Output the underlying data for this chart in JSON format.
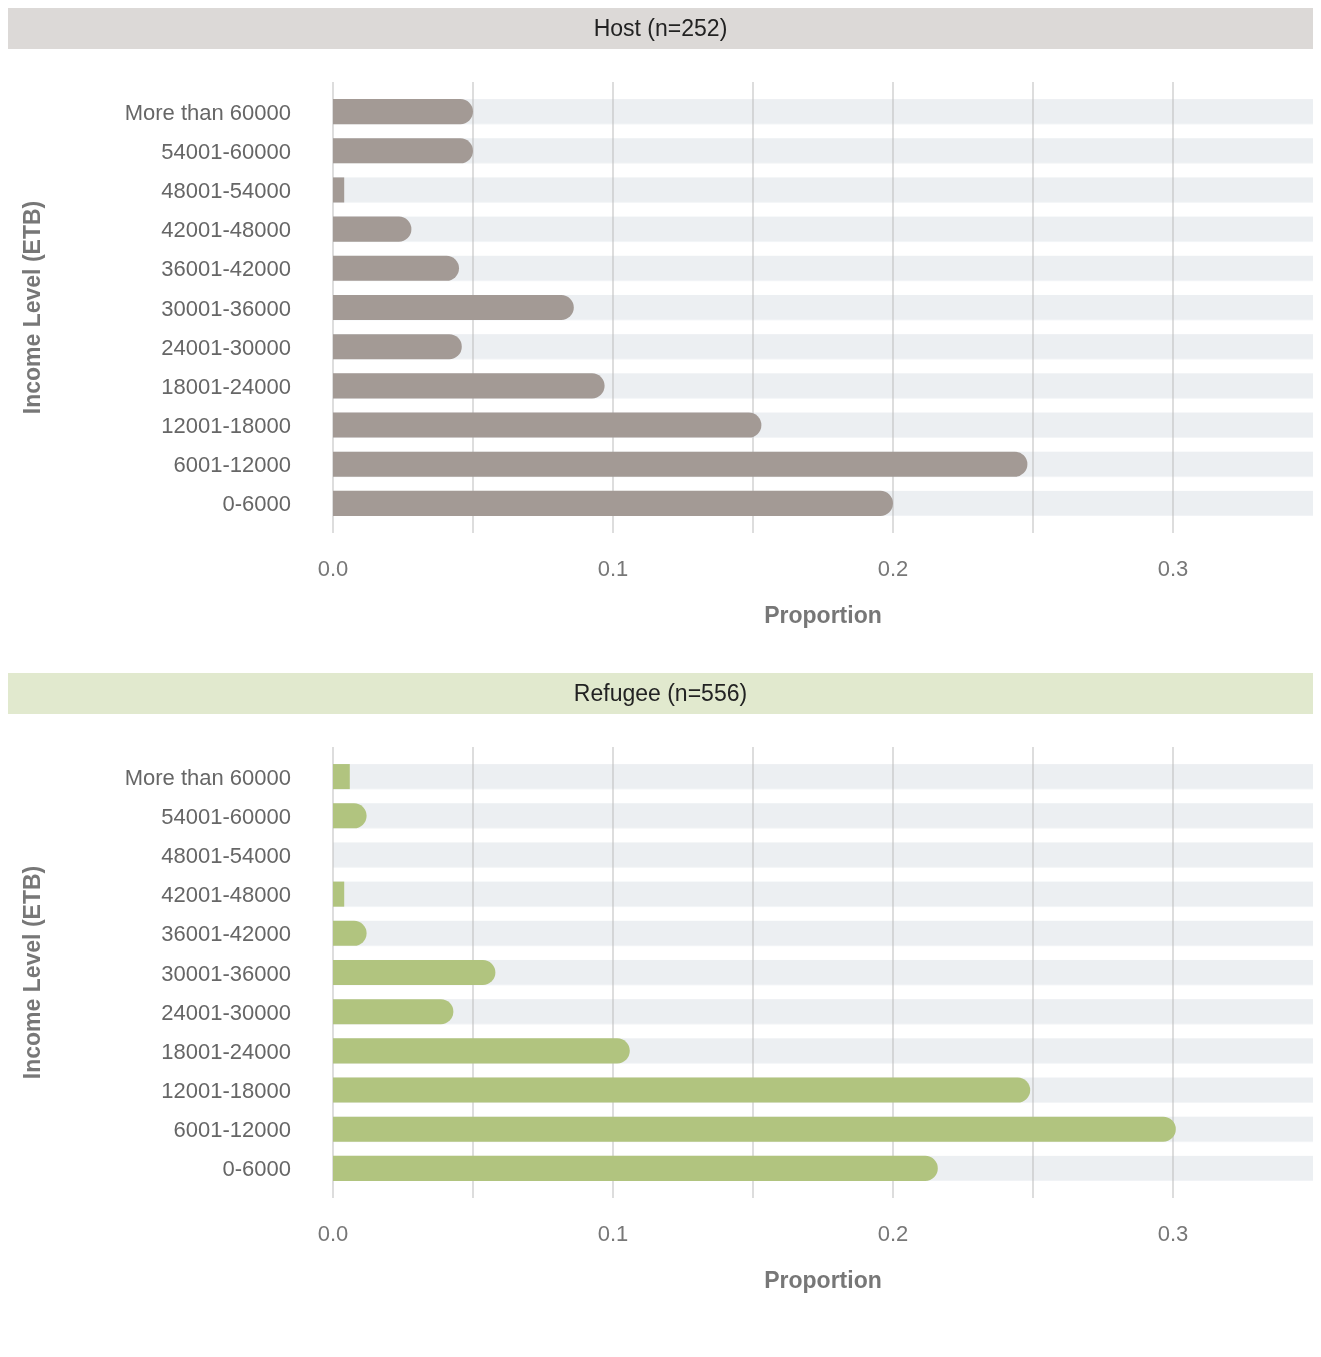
{
  "chart_data": [
    {
      "type": "bar",
      "orientation": "horizontal",
      "title": "Host (n=252)",
      "xlabel": "Proportion",
      "ylabel": "Income Level (ETB)",
      "categories": [
        "More than 60000",
        "54001-60000",
        "48001-54000",
        "42001-48000",
        "36001-42000",
        "30001-36000",
        "24001-30000",
        "18001-24000",
        "12001-18000",
        "6001-12000",
        "0-6000"
      ],
      "series": [
        {
          "color": "#a39a95",
          "values": [
            0.05,
            0.05,
            0.004,
            0.028,
            0.045,
            0.086,
            0.046,
            0.097,
            0.153,
            0.248,
            0.2
          ]
        }
      ],
      "xlim": [
        0,
        0.35
      ],
      "xticks": [
        {
          "value": 0,
          "label": "0.0"
        },
        {
          "value": 0.05,
          "label": null
        },
        0.1,
        {
          "value": 0.15,
          "label": null
        },
        0.2,
        {
          "value": 0.25,
          "label": null
        },
        0.3
      ],
      "grid": "x"
    },
    {
      "type": "bar",
      "orientation": "horizontal",
      "title": "Refugee (n=556)",
      "xlabel": "Proportion",
      "ylabel": "Income Level (ETB)",
      "categories": [
        "More than 60000",
        "54001-60000",
        "48001-54000",
        "42001-48000",
        "36001-42000",
        "30001-36000",
        "24001-30000",
        "18001-24000",
        "12001-18000",
        "6001-12000",
        "0-6000"
      ],
      "series": [
        {
          "color": "#b1c47f",
          "values": [
            0.006,
            0.012,
            0,
            0.004,
            0.012,
            0.058,
            0.043,
            0.106,
            0.249,
            0.301,
            0.216
          ]
        }
      ],
      "xlim": [
        0,
        0.35
      ],
      "xticks": [
        {
          "value": 0,
          "label": "0.0"
        },
        {
          "value": 0.05,
          "label": null
        },
        0.1,
        {
          "value": 0.15,
          "label": null
        },
        0.2,
        {
          "value": 0.25,
          "label": null
        },
        0.3
      ],
      "grid": "x"
    }
  ]
}
